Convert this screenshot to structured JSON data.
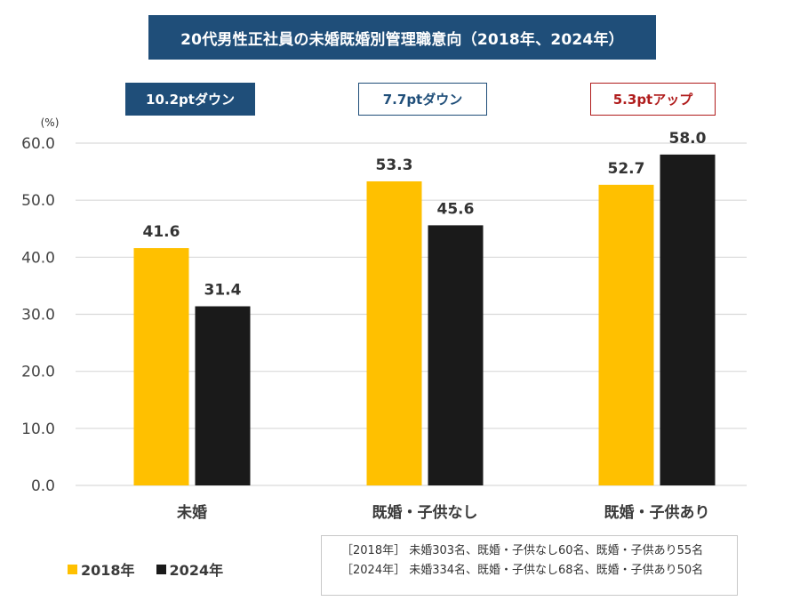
{
  "chart_data": {
    "type": "bar",
    "title": "20代男性正社員の未婚既婚別管理職意向（2018年、2024年）",
    "ylabel": "(%)",
    "xlabel": "",
    "ylim": [
      0,
      60
    ],
    "yticks": [
      "0.0",
      "10.0",
      "20.0",
      "30.0",
      "40.0",
      "50.0",
      "60.0"
    ],
    "grid": true,
    "categories": [
      "未婚",
      "既婚・子供なし",
      "既婚・子供あり"
    ],
    "series": [
      {
        "name": "2018年",
        "color": "#ffc000",
        "values": [
          41.6,
          53.3,
          52.7
        ],
        "labels": [
          "41.6",
          "53.3",
          "52.7"
        ]
      },
      {
        "name": "2024年",
        "color": "#1a1a1a",
        "values": [
          31.4,
          45.6,
          58.0
        ],
        "labels": [
          "31.4",
          "45.6",
          "58.0"
        ]
      }
    ],
    "annotations": [
      "10.2ptダウン",
      "7.7ptダウン",
      "5.3ptアップ"
    ],
    "legend_position": "bottom-left",
    "notes": [
      "［2018年］ 未婚303名、既婚・子供なし60名、既婚・子供あり55名",
      "［2024年］ 未婚334名、既婚・子供なし68名、既婚・子供あり50名"
    ]
  },
  "colors": {
    "title_bg": "#1f4e79",
    "down": "#1f4e79",
    "up": "#b01c1c",
    "series_2018": "#ffc000",
    "series_2024": "#1a1a1a",
    "grid": "#d9d9d9"
  }
}
